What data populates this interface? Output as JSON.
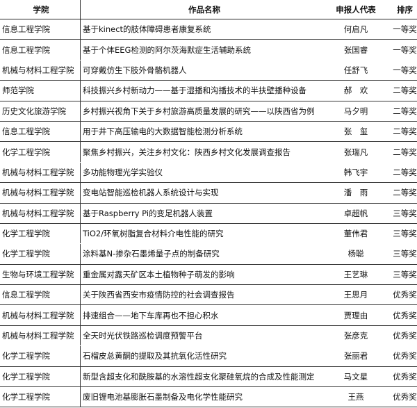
{
  "headers": [
    "学院",
    "作品名称",
    "申报人代表",
    "排序"
  ],
  "rows": [
    [
      "信息工程学院",
      "基于kinect的肢体障碍患者康复系统",
      "何启凡",
      "一等奖"
    ],
    [
      "信息工程学院",
      "基于个体EEG检测的阿尔茨海默症生活辅助系统",
      "张国睿",
      "一等奖"
    ],
    [
      "机械与材料工程学院",
      "可穿戴仿生下肢外骨骼机器人",
      "任舒飞",
      "一等奖"
    ],
    [
      "师范学院",
      "科技振兴乡村新动力——基于湿播和沟播技术的半扶壁播种设备",
      "郝　欢",
      "二等奖"
    ],
    [
      "历史文化旅游学院",
      "乡村振兴视角下关于乡村旅游高质量发展的研究——以陕西省为例",
      "马夕明",
      "二等奖"
    ],
    [
      "信息工程学院",
      "用于井下高压输电的大数据智能检测分析系统",
      "张　玺",
      "二等奖"
    ],
    [
      "化学工程学院",
      "聚焦乡村振兴，关注乡村文化：陕西乡村文化发展调查报告",
      "张瑞凡",
      "二等奖"
    ],
    [
      "机械与材料工程学院",
      "多功能物理光学实验仪",
      "韩飞宇",
      "二等奖"
    ],
    [
      "机械与材料工程学院",
      "变电站智能巡检机器人系统设计与实现",
      "潘　雨",
      "二等奖"
    ],
    [
      "机械与材料工程学院",
      "基于Raspberry Pi的变足机器人装置",
      "卓超帆",
      "三等奖"
    ],
    [
      "化学工程学院",
      "TiO2/环氧树脂复合材料介电性能的研究",
      "董伟君",
      "三等奖"
    ],
    [
      "化学工程学院",
      "涂料基N-掺杂石墨烯量子点的制备研究",
      "杨聪",
      "三等奖"
    ],
    [
      "生物与环境工程学院",
      "重金属对露天矿区本土植物种子萌发的影响",
      "王艺琳",
      "三等奖"
    ],
    [
      "信息工程学院",
      "关于陕西省西安市疫情防控的社会调查报告",
      "王思月",
      "优秀奖"
    ],
    [
      "机械与材料工程学院",
      "排速组合——地下车库再也不担心积水",
      "贾理由",
      "优秀奖"
    ],
    [
      "机械与材料工程学院",
      "全天时光伏铁路巡检调度预警平台",
      "张彦克",
      "优秀奖"
    ],
    [
      "化学工程学院",
      "石榴皮总黄酮的提取及其抗氧化活性研究",
      "张丽君",
      "优秀奖"
    ],
    [
      "化学工程学院",
      "新型含超支化和酰胺基的水溶性超支化聚硅氧烷的合成及性能测定",
      "马文星",
      "优秀奖"
    ],
    [
      "化学工程学院",
      "废旧锂电池基膨胀石墨制备及电化学性能研究",
      "王燕",
      "优秀奖"
    ]
  ]
}
